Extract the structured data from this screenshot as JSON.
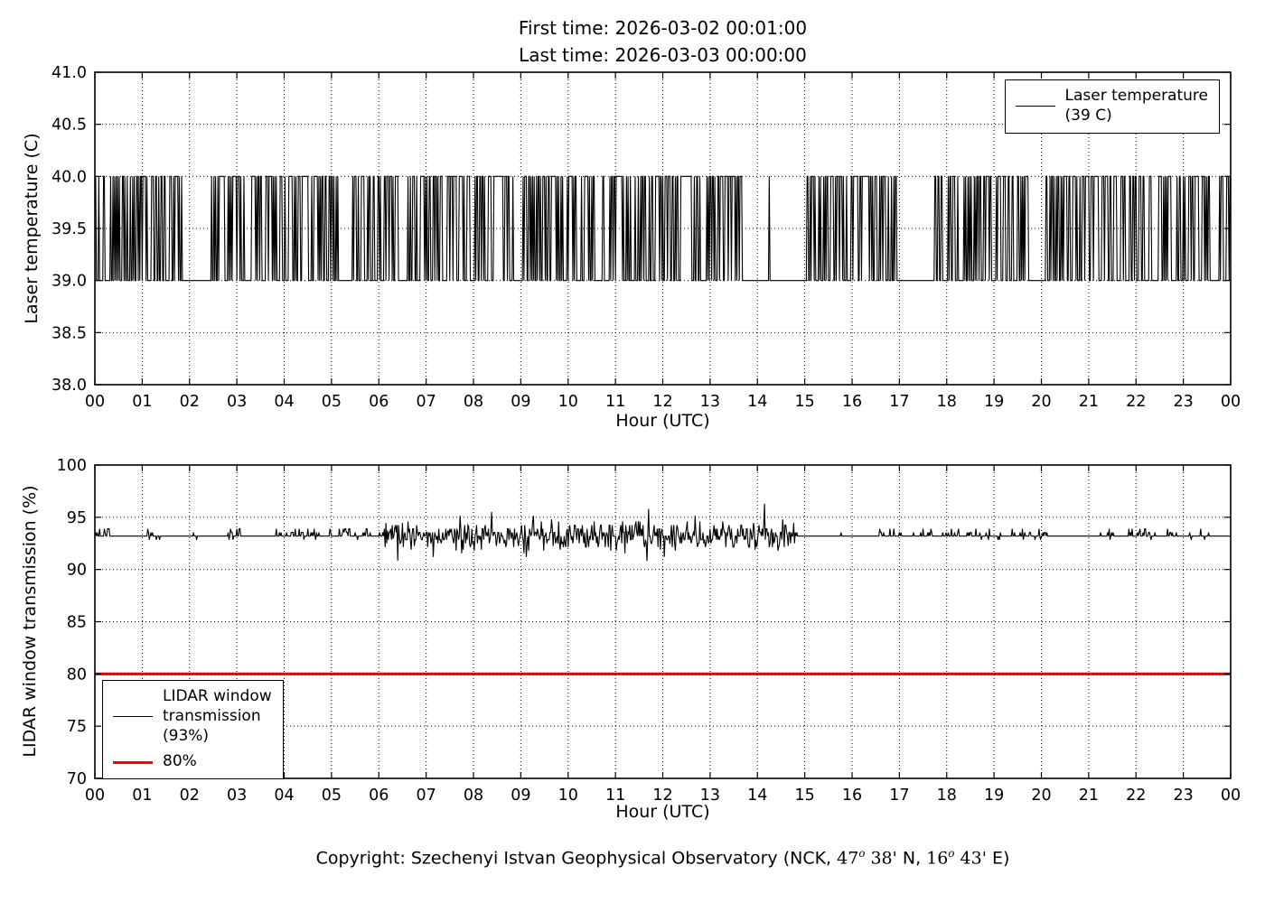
{
  "figure": {
    "title_line1": "First time: 2026-03-02 00:01:00",
    "title_line2": "Last time: 2026-03-03 00:00:00",
    "background": "#ffffff",
    "line_color": "#000000",
    "threshold_color": "#ff0000"
  },
  "footer": {
    "parts": [
      {
        "text": "Copyright: Szechenyi Istvan Geophysical Observatory (NCK, ",
        "style": "sans"
      },
      {
        "text": "47",
        "style": "math"
      },
      {
        "text": "o",
        "style": "sup"
      },
      {
        "text": " 38'",
        "style": "math"
      },
      {
        "text": " N, ",
        "style": "sans"
      },
      {
        "text": "16",
        "style": "math"
      },
      {
        "text": "o",
        "style": "sup"
      },
      {
        "text": " 43'",
        "style": "math"
      },
      {
        "text": " E)",
        "style": "sans"
      }
    ]
  },
  "chart_data": [
    {
      "type": "line",
      "id": "laser-temperature",
      "title": "",
      "xlabel": "Hour (UTC)",
      "ylabel": "Laser temperature (C)",
      "xlim": [
        0,
        24
      ],
      "ylim": [
        38.0,
        41.0
      ],
      "grid": true,
      "xticks": [
        0,
        1,
        2,
        3,
        4,
        5,
        6,
        7,
        8,
        9,
        10,
        11,
        12,
        13,
        14,
        15,
        16,
        17,
        18,
        19,
        20,
        21,
        22,
        23,
        24
      ],
      "xtick_labels": [
        "00",
        "01",
        "02",
        "03",
        "04",
        "05",
        "06",
        "07",
        "08",
        "09",
        "10",
        "11",
        "12",
        "13",
        "14",
        "15",
        "16",
        "17",
        "18",
        "19",
        "20",
        "21",
        "22",
        "23",
        "00"
      ],
      "yticks": [
        38.0,
        38.5,
        39.0,
        39.5,
        40.0,
        40.5,
        41.0
      ],
      "ytick_labels": [
        "38.0",
        "38.5",
        "39.0",
        "39.5",
        "40.0",
        "40.5",
        "41.0"
      ],
      "legend": {
        "position": "upper-right",
        "entries": [
          {
            "label": "Laser temperature\n(39 C)",
            "color": "#000000",
            "linewidth": 1
          }
        ]
      },
      "series": [
        {
          "name": "Laser temperature",
          "color": "#000000",
          "linewidth": 1.1,
          "generator": {
            "kind": "binary-toggle",
            "low": 39.0,
            "high": 40.0,
            "start_hour": 0.0167,
            "end_hour": 24,
            "step_minutes": 1,
            "toggle_probability": 0.45,
            "seed": 12,
            "quiet_intervals": [
              [
                1.85,
                2.45
              ],
              [
                5.15,
                5.45
              ],
              [
                8.85,
                9.05
              ],
              [
                13.7,
                15.05
              ],
              [
                16.95,
                17.75
              ],
              [
                19.75,
                20.1
              ],
              [
                23.6,
                23.75
              ]
            ],
            "quiet_spike_hours": [
              14.25
            ]
          }
        }
      ]
    },
    {
      "type": "line",
      "id": "window-transmission",
      "title": "",
      "xlabel": "Hour (UTC)",
      "ylabel": "LIDAR window transmission (%)",
      "xlim": [
        0,
        24
      ],
      "ylim": [
        70,
        100
      ],
      "grid": true,
      "xticks": [
        0,
        1,
        2,
        3,
        4,
        5,
        6,
        7,
        8,
        9,
        10,
        11,
        12,
        13,
        14,
        15,
        16,
        17,
        18,
        19,
        20,
        21,
        22,
        23,
        24
      ],
      "xtick_labels": [
        "00",
        "01",
        "02",
        "03",
        "04",
        "05",
        "06",
        "07",
        "08",
        "09",
        "10",
        "11",
        "12",
        "13",
        "14",
        "15",
        "16",
        "17",
        "18",
        "19",
        "20",
        "21",
        "22",
        "23",
        "00"
      ],
      "yticks": [
        70,
        75,
        80,
        85,
        90,
        95,
        100
      ],
      "ytick_labels": [
        "70",
        "75",
        "80",
        "85",
        "90",
        "95",
        "100"
      ],
      "legend": {
        "position": "lower-left",
        "entries": [
          {
            "label": "LIDAR window\ntransmission\n(93%)",
            "color": "#000000",
            "linewidth": 1
          },
          {
            "label": "80%",
            "color": "#ff0000",
            "linewidth": 3
          }
        ]
      },
      "series": [
        {
          "name": "LIDAR window transmission",
          "color": "#000000",
          "linewidth": 1.1,
          "generator": {
            "kind": "noisy-level",
            "base": 93.2,
            "quantum": 0.35,
            "step_minutes": 1,
            "seed": 77,
            "clamp": [
              90.8,
              96.3
            ],
            "segments": [
              {
                "from": 0,
                "to": 6.1,
                "amplitude": 0.7,
                "blip_probability": 0.28
              },
              {
                "from": 6.1,
                "to": 14.8,
                "amplitude": 1.6,
                "blip_probability": 0.75
              },
              {
                "from": 14.8,
                "to": 24.01,
                "amplitude": 0.7,
                "blip_probability": 0.2
              }
            ],
            "spikes": [
              {
                "hour": 11.7,
                "value": 95.8
              },
              {
                "hour": 14.15,
                "value": 96.3
              }
            ]
          }
        }
      ],
      "threshold": {
        "value": 80,
        "color": "#ff0000",
        "linewidth": 3.2,
        "label": "80%"
      }
    }
  ]
}
